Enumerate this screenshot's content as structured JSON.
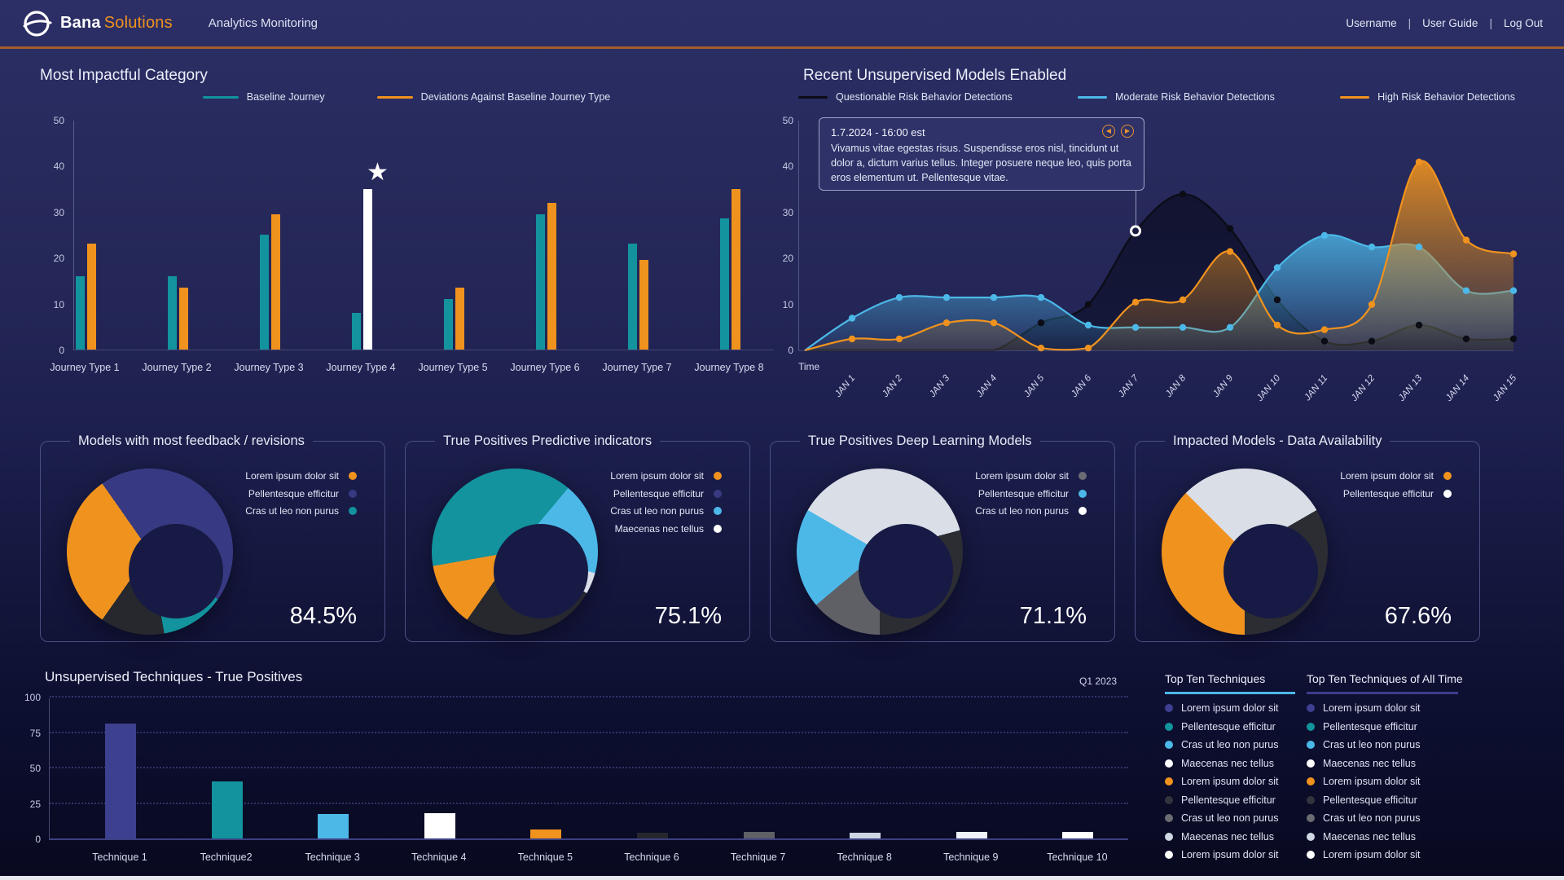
{
  "header": {
    "brand_bold": "Bana",
    "brand_accent": "Solutions",
    "app_title": "Analytics Monitoring",
    "separator": "|",
    "nav": [
      {
        "label": "Username"
      },
      {
        "label": "User Guide"
      },
      {
        "label": "Log Out"
      }
    ]
  },
  "colors": {
    "accent_orange": "#f0921e",
    "teal": "#12939e",
    "indigo": "#3d3f8f",
    "light_blue": "#4cb8e8",
    "header_border": "#a55e28"
  },
  "chart_data": [
    {
      "id": "most-impactful-category",
      "type": "bar",
      "title": "Most Impactful Category",
      "categories": [
        "Journey Type 1",
        "Journey Type 2",
        "Journey Type 3",
        "Journey Type 4",
        "Journey Type 5",
        "Journey Type 6",
        "Journey Type 7",
        "Journey Type 8"
      ],
      "series": [
        {
          "name": "Baseline Journey",
          "color": "#12939e",
          "values": [
            16,
            16,
            25,
            8,
            11,
            29.5,
            23,
            28.5
          ]
        },
        {
          "name": "Deviations Against Baseline Journey Type",
          "color": "#f0921e",
          "values": [
            23,
            13.5,
            29.5,
            35,
            13.5,
            32,
            19.5,
            35
          ]
        }
      ],
      "highlight": {
        "category_index": 3,
        "series_index": 1,
        "color": "#ffffff",
        "marker": "star"
      },
      "ylim": [
        0,
        50
      ],
      "yticks": [
        0,
        10,
        20,
        30,
        40,
        50
      ],
      "grid": false,
      "legend_position": "top"
    },
    {
      "id": "recent-unsupervised-models",
      "type": "area",
      "title": "Recent Unsupervised Models Enabled",
      "x_labels": [
        "Time",
        "JAN 1",
        "JAN 2",
        "JAN 3",
        "JAN 4",
        "JAN 5",
        "JAN 6",
        "JAN 7",
        "JAN 8",
        "JAN 9",
        "JAN 10",
        "JAN 11",
        "JAN 12",
        "JAN 13",
        "JAN 14",
        "JAN 15"
      ],
      "ylim": [
        0,
        50
      ],
      "yticks": [
        0,
        10,
        20,
        30,
        40,
        50
      ],
      "series": [
        {
          "name": "Questionable Risk Behavior Detections",
          "color": "#0b0c16",
          "fill_top": "rgba(16,18,46,0.95)",
          "fill_bottom": "rgba(12,14,38,0.55)",
          "values": [
            0,
            0,
            0,
            0,
            0,
            6,
            10,
            26,
            34,
            26.5,
            11,
            2,
            2,
            5.5,
            2.5,
            2.5
          ],
          "marker_from": 5
        },
        {
          "name": "Moderate Risk Behavior Detections",
          "color": "#4cb8e8",
          "fill_top": "rgba(76,184,232,0.8)",
          "fill_bottom": "rgba(76,184,232,0.08)",
          "values": [
            0,
            7,
            11.5,
            11.5,
            11.5,
            11.5,
            5.5,
            5,
            5,
            5,
            18,
            25,
            22.5,
            22.5,
            13,
            13
          ],
          "marker_from": 1
        },
        {
          "name": "High Risk Behavior Detections",
          "color": "#f0921e",
          "fill_top": "rgba(240,146,30,0.9)",
          "fill_bottom": "rgba(180,118,31,0.15)",
          "values": [
            0,
            2.5,
            2.5,
            6,
            6,
            0.5,
            0.5,
            10.5,
            11,
            21.5,
            5.5,
            4.5,
            10,
            41,
            24,
            21
          ],
          "marker_from": 1
        }
      ],
      "tooltip": {
        "title": "1.7.2024 - 16:00 est",
        "body": "Vivamus vitae egestas risus. Suspendisse eros nisl, tincidunt ut dolor a, dictum varius tellus. Integer posuere neque leo, quis porta eros elementum ut. Pellentesque vitae.",
        "anchor_series": 0,
        "anchor_index": 7,
        "prev_icon": "◀",
        "next_icon": "▶"
      }
    },
    {
      "id": "models-most-feedback",
      "type": "pie",
      "title": "Models with most feedback / revisions",
      "value_label": "84.5%",
      "legend": [
        {
          "label": "Lorem ipsum dolor sit",
          "color": "#f0921e"
        },
        {
          "label": "Pellentesque efficitur",
          "color": "#373a82"
        },
        {
          "label": "Cras ut leo non purus",
          "color": "#12939e"
        }
      ],
      "segments": [
        {
          "color": "#373a82",
          "from": 0,
          "to": 125
        },
        {
          "color": "#12939e",
          "from": 125,
          "to": 170
        },
        {
          "color": "#26282e",
          "from": 170,
          "to": 215
        },
        {
          "color": "#f0921e",
          "from": 215,
          "to": 325
        },
        {
          "color": "#373a82",
          "from": 325,
          "to": 360
        }
      ]
    },
    {
      "id": "true-positives-predictive",
      "type": "pie",
      "title": "True Positives Predictive indicators",
      "value_label": "75.1%",
      "legend": [
        {
          "label": "Lorem ipsum dolor sit",
          "color": "#f0921e"
        },
        {
          "label": "Pellentesque efficitur",
          "color": "#373a82"
        },
        {
          "label": "Cras ut leo non purus",
          "color": "#4cb8e8"
        },
        {
          "label": "Maecenas nec tellus",
          "color": "#ffffff"
        }
      ],
      "segments": [
        {
          "color": "#12939e",
          "from": 0,
          "to": 40
        },
        {
          "color": "#4cb8e8",
          "from": 40,
          "to": 105
        },
        {
          "color": "#d9dee7",
          "from": 105,
          "to": 120
        },
        {
          "color": "#26282e",
          "from": 120,
          "to": 215
        },
        {
          "color": "#f0921e",
          "from": 215,
          "to": 260
        },
        {
          "color": "#12939e",
          "from": 260,
          "to": 360
        }
      ]
    },
    {
      "id": "true-positives-deep-learning",
      "type": "pie",
      "title": "True Positives Deep Learning Models",
      "value_label": "71.1%",
      "legend": [
        {
          "label": "Lorem ipsum dolor sit",
          "color": "#6b6b73"
        },
        {
          "label": "Pellentesque efficitur",
          "color": "#4cb8e8"
        },
        {
          "label": "Cras ut leo non purus",
          "color": "#ffffff"
        }
      ],
      "segments": [
        {
          "color": "#d9dee7",
          "from": 0,
          "to": 75
        },
        {
          "color": "#2b2d33",
          "from": 75,
          "to": 180
        },
        {
          "color": "#5f5f66",
          "from": 180,
          "to": 230
        },
        {
          "color": "#4cb8e8",
          "from": 230,
          "to": 300
        },
        {
          "color": "#d9dee7",
          "from": 300,
          "to": 360
        }
      ]
    },
    {
      "id": "impacted-models-data-availability",
      "type": "pie",
      "title": "Impacted Models - Data Availability",
      "value_label": "67.6%",
      "legend": [
        {
          "label": "Lorem ipsum dolor sit",
          "color": "#f0921e"
        },
        {
          "label": "Pellentesque efficitur",
          "color": "#ffffff"
        }
      ],
      "segments": [
        {
          "color": "#d9dee7",
          "from": 0,
          "to": 60
        },
        {
          "color": "#2b2d33",
          "from": 60,
          "to": 180
        },
        {
          "color": "#f0921e",
          "from": 180,
          "to": 315
        },
        {
          "color": "#d9dee7",
          "from": 315,
          "to": 360
        }
      ]
    },
    {
      "id": "unsupervised-techniques",
      "type": "bar",
      "title": "Unsupervised Techniques - True Positives",
      "period_label": "Q1 2023",
      "categories": [
        "Technique 1",
        "Technique2",
        "Technique 3",
        "Technique 4",
        "Technique 5",
        "Technique 6",
        "Technique 7",
        "Technique 8",
        "Technique 9",
        "Technique 10"
      ],
      "values": [
        81,
        40,
        17.5,
        18,
        6.5,
        4,
        4.5,
        4,
        4.5,
        4.5
      ],
      "bar_colors": [
        "#3d3f8f",
        "#12939e",
        "#4cb8e8",
        "#ffffff",
        "#f0921e",
        "#26262e",
        "#5f5f66",
        "#ccd6e2",
        "#edf2fa",
        "#ffffff"
      ],
      "ylim": [
        0,
        100
      ],
      "yticks": [
        0,
        25,
        50,
        75,
        100
      ],
      "grid": "dashed"
    }
  ],
  "tech_legends": {
    "panels": [
      {
        "title": "Top Ten Techniques",
        "underline_color": "#4cb8e8",
        "items": [
          {
            "label": "Lorem ipsum dolor sit",
            "color": "#3d3f8f"
          },
          {
            "label": "Pellentesque efficitur",
            "color": "#12939e"
          },
          {
            "label": "Cras ut leo non purus",
            "color": "#4cb8e8"
          },
          {
            "label": "Maecenas nec tellus",
            "color": "#ffffff"
          },
          {
            "label": "Lorem ipsum dolor sit",
            "color": "#f0921e"
          },
          {
            "label": "Pellentesque efficitur",
            "color": "#33343c"
          },
          {
            "label": "Cras ut leo non purus",
            "color": "#6b6b73"
          },
          {
            "label": "Maecenas nec tellus",
            "color": "#cfd8e3"
          },
          {
            "label": "Lorem ipsum dolor sit",
            "color": "#ffffff"
          }
        ]
      },
      {
        "title": "Top Ten Techniques of All Time",
        "underline_color": "#3d3f8f",
        "items": [
          {
            "label": "Lorem ipsum dolor sit",
            "color": "#3d3f8f"
          },
          {
            "label": "Pellentesque efficitur",
            "color": "#12939e"
          },
          {
            "label": "Cras ut leo non purus",
            "color": "#4cb8e8"
          },
          {
            "label": "Maecenas nec tellus",
            "color": "#ffffff"
          },
          {
            "label": "Lorem ipsum dolor sit",
            "color": "#f0921e"
          },
          {
            "label": "Pellentesque efficitur",
            "color": "#33343c"
          },
          {
            "label": "Cras ut leo non purus",
            "color": "#6b6b73"
          },
          {
            "label": "Maecenas nec tellus",
            "color": "#cfd8e3"
          },
          {
            "label": "Lorem ipsum dolor sit",
            "color": "#ffffff"
          }
        ]
      }
    ]
  }
}
